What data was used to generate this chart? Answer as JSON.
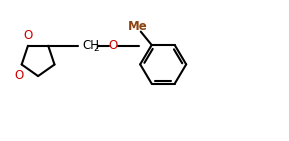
{
  "bg_color": "#ffffff",
  "line_color": "#000000",
  "o_color": "#cc0000",
  "me_color": "#8B4513",
  "line_width": 1.5,
  "fig_width": 2.89,
  "fig_height": 1.41,
  "dpi": 100,
  "font_size_label": 8.5,
  "font_size_me": 8.5,
  "font_size_ch2": 8.5,
  "font_size_sub": 6.5,
  "xlim": [
    0,
    10.0
  ],
  "ylim": [
    0,
    5.0
  ]
}
